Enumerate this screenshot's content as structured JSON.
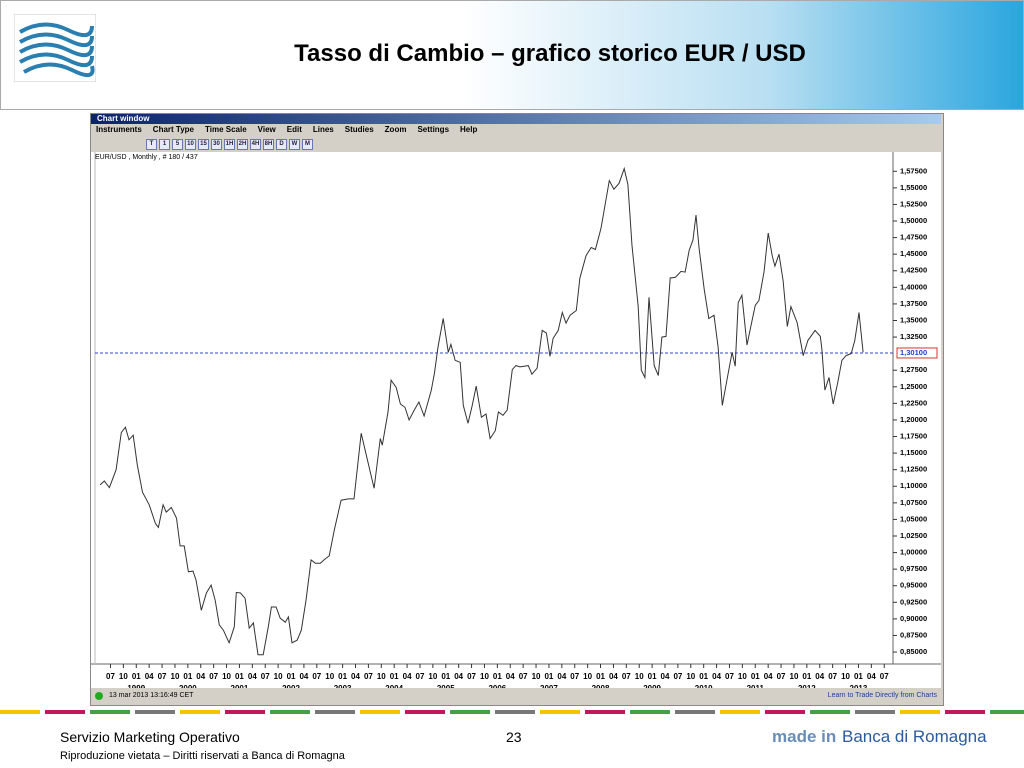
{
  "slide": {
    "title": "Tasso di Cambio  –  grafico storico EUR / USD",
    "footer_left": "Servizio Marketing Operativo",
    "page_number": "23",
    "copyright": "Riproduzione vietata – Diritti riservati a Banca di Romagna",
    "logo_prefix": "made in",
    "logo_name": "Banca di Romagna"
  },
  "window": {
    "title": "Chart window",
    "menu": [
      "Instruments",
      "Chart Type",
      "Time Scale",
      "View",
      "Edit",
      "Lines",
      "Studies",
      "Zoom",
      "Settings",
      "Help"
    ],
    "timeframes": [
      "T",
      "1",
      "5",
      "10",
      "15",
      "30",
      "1H",
      "2H",
      "4H",
      "8H",
      "D",
      "W",
      "M"
    ],
    "status_time": "13 mar 2013 13:16:49 CET",
    "status_link": "Learn to Trade Directly from Charts"
  },
  "chart_data": {
    "type": "line",
    "subtitle": "EUR/USD , Monthly , # 180 / 437",
    "color": "#333333",
    "x": [
      1998.3,
      1998.38,
      1998.48,
      1998.61,
      1998.71,
      1998.79,
      1998.86,
      1998.94,
      1999.02,
      1999.12,
      1999.25,
      1999.37,
      1999.43,
      1999.52,
      1999.58,
      1999.68,
      1999.78,
      1999.85,
      1999.93,
      2000.01,
      2000.1,
      2000.16,
      2000.26,
      2000.36,
      2000.45,
      2000.53,
      2000.61,
      2000.69,
      2000.8,
      2000.9,
      2000.94,
      2001.02,
      2001.11,
      2001.19,
      2001.27,
      2001.36,
      2001.46,
      2001.56,
      2001.62,
      2001.71,
      2001.79,
      2001.89,
      2001.95,
      2002.02,
      2002.12,
      2002.2,
      2002.29,
      2002.39,
      2002.47,
      2002.57,
      2002.64,
      2002.74,
      2002.84,
      2002.97,
      2003.11,
      2003.22,
      2003.36,
      2003.46,
      2003.61,
      2003.73,
      2003.77,
      2003.88,
      2003.94,
      2004.04,
      2004.12,
      2004.21,
      2004.29,
      2004.39,
      2004.48,
      2004.58,
      2004.72,
      2004.78,
      2004.85,
      2004.95,
      2005.05,
      2005.1,
      2005.18,
      2005.28,
      2005.34,
      2005.43,
      2005.51,
      2005.59,
      2005.69,
      2005.78,
      2005.86,
      2005.96,
      2006.02,
      2006.11,
      2006.19,
      2006.29,
      2006.36,
      2006.44,
      2006.6,
      2006.67,
      2006.77,
      2006.87,
      2006.95,
      2007.02,
      2007.08,
      2007.18,
      2007.26,
      2007.33,
      2007.41,
      2007.53,
      2007.6,
      2007.72,
      2007.82,
      2007.9,
      2008.01,
      2008.17,
      2008.26,
      2008.36,
      2008.46,
      2008.53,
      2008.61,
      2008.73,
      2008.79,
      2008.86,
      2008.94,
      2009.04,
      2009.12,
      2009.19,
      2009.27,
      2009.35,
      2009.45,
      2009.56,
      2009.64,
      2009.72,
      2009.79,
      2009.85,
      2009.91,
      2010.01,
      2010.1,
      2010.2,
      2010.28,
      2010.36,
      2010.45,
      2010.55,
      2010.61,
      2010.67,
      2010.74,
      2010.84,
      2010.92,
      2011.0,
      2011.07,
      2011.17,
      2011.25,
      2011.33,
      2011.38,
      2011.46,
      2011.54,
      2011.62,
      2011.69,
      2011.81,
      2011.93,
      2012.02,
      2012.16,
      2012.26,
      2012.29,
      2012.35,
      2012.43,
      2012.51,
      2012.6,
      2012.68,
      2012.76,
      2012.86,
      2012.93,
      2013.01,
      2013.09
    ],
    "values": [
      1.102,
      1.108,
      1.098,
      1.125,
      1.181,
      1.189,
      1.17,
      1.177,
      1.132,
      1.091,
      1.072,
      1.044,
      1.038,
      1.072,
      1.061,
      1.068,
      1.052,
      1.01,
      1.01,
      0.971,
      0.972,
      0.958,
      0.913,
      0.939,
      0.951,
      0.928,
      0.891,
      0.883,
      0.864,
      0.888,
      0.94,
      0.939,
      0.931,
      0.886,
      0.894,
      0.846,
      0.846,
      0.888,
      0.918,
      0.918,
      0.901,
      0.895,
      0.903,
      0.864,
      0.868,
      0.883,
      0.928,
      0.989,
      0.984,
      0.984,
      0.989,
      0.995,
      1.034,
      1.079,
      1.081,
      1.081,
      1.18,
      1.147,
      1.097,
      1.172,
      1.162,
      1.212,
      1.26,
      1.249,
      1.224,
      1.219,
      1.2,
      1.215,
      1.227,
      1.206,
      1.245,
      1.27,
      1.31,
      1.353,
      1.302,
      1.314,
      1.29,
      1.287,
      1.222,
      1.195,
      1.221,
      1.251,
      1.204,
      1.209,
      1.172,
      1.184,
      1.212,
      1.207,
      1.215,
      1.276,
      1.282,
      1.28,
      1.282,
      1.269,
      1.278,
      1.335,
      1.331,
      1.296,
      1.323,
      1.335,
      1.362,
      1.346,
      1.358,
      1.365,
      1.414,
      1.448,
      1.46,
      1.457,
      1.489,
      1.561,
      1.548,
      1.557,
      1.579,
      1.555,
      1.463,
      1.371,
      1.275,
      1.264,
      1.385,
      1.282,
      1.267,
      1.325,
      1.326,
      1.414,
      1.415,
      1.424,
      1.423,
      1.456,
      1.471,
      1.509,
      1.46,
      1.397,
      1.353,
      1.358,
      1.31,
      1.222,
      1.26,
      1.302,
      1.281,
      1.377,
      1.388,
      1.313,
      1.343,
      1.373,
      1.38,
      1.423,
      1.482,
      1.447,
      1.432,
      1.45,
      1.41,
      1.341,
      1.371,
      1.347,
      1.297,
      1.32,
      1.335,
      1.326,
      1.308,
      1.245,
      1.264,
      1.224,
      1.257,
      1.29,
      1.297,
      1.3,
      1.32,
      1.362,
      1.302
    ],
    "xlim": [
      1998.2,
      2013.67
    ],
    "ylim": [
      0.838,
      1.589
    ],
    "xticks": [
      {
        "value": 1998.5,
        "label": "07"
      },
      {
        "value": 1998.75,
        "label": "10"
      },
      {
        "value": 1999,
        "label": "01"
      },
      {
        "value": 1999.25,
        "label": "04"
      },
      {
        "value": 1999.5,
        "label": "07"
      },
      {
        "value": 1999.75,
        "label": "10"
      },
      {
        "value": 2000,
        "label": "01"
      },
      {
        "value": 2000.25,
        "label": "04"
      },
      {
        "value": 2000.5,
        "label": "07"
      },
      {
        "value": 2000.75,
        "label": "10"
      },
      {
        "value": 2001,
        "label": "01"
      },
      {
        "value": 2001.25,
        "label": "04"
      },
      {
        "value": 2001.5,
        "label": "07"
      },
      {
        "value": 2001.75,
        "label": "10"
      },
      {
        "value": 2002,
        "label": "01"
      },
      {
        "value": 2002.25,
        "label": "04"
      },
      {
        "value": 2002.5,
        "label": "07"
      },
      {
        "value": 2002.75,
        "label": "10"
      },
      {
        "value": 2003,
        "label": "01"
      },
      {
        "value": 2003.25,
        "label": "04"
      },
      {
        "value": 2003.5,
        "label": "07"
      },
      {
        "value": 2003.75,
        "label": "10"
      },
      {
        "value": 2004,
        "label": "01"
      },
      {
        "value": 2004.25,
        "label": "04"
      },
      {
        "value": 2004.5,
        "label": "07"
      },
      {
        "value": 2004.75,
        "label": "10"
      },
      {
        "value": 2005,
        "label": "01"
      },
      {
        "value": 2005.25,
        "label": "04"
      },
      {
        "value": 2005.5,
        "label": "07"
      },
      {
        "value": 2005.75,
        "label": "10"
      },
      {
        "value": 2006,
        "label": "01"
      },
      {
        "value": 2006.25,
        "label": "04"
      },
      {
        "value": 2006.5,
        "label": "07"
      },
      {
        "value": 2006.75,
        "label": "10"
      },
      {
        "value": 2007,
        "label": "01"
      },
      {
        "value": 2007.25,
        "label": "04"
      },
      {
        "value": 2007.5,
        "label": "07"
      },
      {
        "value": 2007.75,
        "label": "10"
      },
      {
        "value": 2008,
        "label": "01"
      },
      {
        "value": 2008.25,
        "label": "04"
      },
      {
        "value": 2008.5,
        "label": "07"
      },
      {
        "value": 2008.75,
        "label": "10"
      },
      {
        "value": 2009,
        "label": "01"
      },
      {
        "value": 2009.25,
        "label": "04"
      },
      {
        "value": 2009.5,
        "label": "07"
      },
      {
        "value": 2009.75,
        "label": "10"
      },
      {
        "value": 2010,
        "label": "01"
      },
      {
        "value": 2010.25,
        "label": "04"
      },
      {
        "value": 2010.5,
        "label": "07"
      },
      {
        "value": 2010.75,
        "label": "10"
      },
      {
        "value": 2011,
        "label": "01"
      },
      {
        "value": 2011.25,
        "label": "04"
      },
      {
        "value": 2011.5,
        "label": "07"
      },
      {
        "value": 2011.75,
        "label": "10"
      },
      {
        "value": 2012,
        "label": "01"
      },
      {
        "value": 2012.25,
        "label": "04"
      },
      {
        "value": 2012.5,
        "label": "07"
      },
      {
        "value": 2012.75,
        "label": "10"
      },
      {
        "value": 2013,
        "label": "01"
      },
      {
        "value": 2013.25,
        "label": "04"
      },
      {
        "value": 2013.5,
        "label": "07"
      }
    ],
    "x_year_labels": [
      1999,
      2000,
      2001,
      2002,
      2003,
      2004,
      2005,
      2006,
      2007,
      2008,
      2009,
      2010,
      2011,
      2012,
      2013
    ],
    "yticks": [
      {
        "value": 0.85,
        "label": "0,85000"
      },
      {
        "value": 0.875,
        "label": "0,87500"
      },
      {
        "value": 0.9,
        "label": "0,90000"
      },
      {
        "value": 0.925,
        "label": "0,92500"
      },
      {
        "value": 0.95,
        "label": "0,95000"
      },
      {
        "value": 0.975,
        "label": "0,97500"
      },
      {
        "value": 1.0,
        "label": "1,00000"
      },
      {
        "value": 1.025,
        "label": "1,02500"
      },
      {
        "value": 1.05,
        "label": "1,05000"
      },
      {
        "value": 1.075,
        "label": "1,07500"
      },
      {
        "value": 1.1,
        "label": "1,10000"
      },
      {
        "value": 1.125,
        "label": "1,12500"
      },
      {
        "value": 1.15,
        "label": "1,15000"
      },
      {
        "value": 1.175,
        "label": "1,17500"
      },
      {
        "value": 1.2,
        "label": "1,20000"
      },
      {
        "value": 1.225,
        "label": "1,22500"
      },
      {
        "value": 1.25,
        "label": "1,25000"
      },
      {
        "value": 1.275,
        "label": "1,27500"
      },
      {
        "value": 1.325,
        "label": "1,32500"
      },
      {
        "value": 1.35,
        "label": "1,35000"
      },
      {
        "value": 1.375,
        "label": "1,37500"
      },
      {
        "value": 1.4,
        "label": "1,40000"
      },
      {
        "value": 1.425,
        "label": "1,42500"
      },
      {
        "value": 1.45,
        "label": "1,45000"
      },
      {
        "value": 1.475,
        "label": "1,47500"
      },
      {
        "value": 1.5,
        "label": "1,50000"
      },
      {
        "value": 1.525,
        "label": "1,52500"
      },
      {
        "value": 1.55,
        "label": "1,55000"
      },
      {
        "value": 1.575,
        "label": "1,57500"
      }
    ],
    "current_price": {
      "value": 1.301,
      "label": "1,30100"
    }
  }
}
